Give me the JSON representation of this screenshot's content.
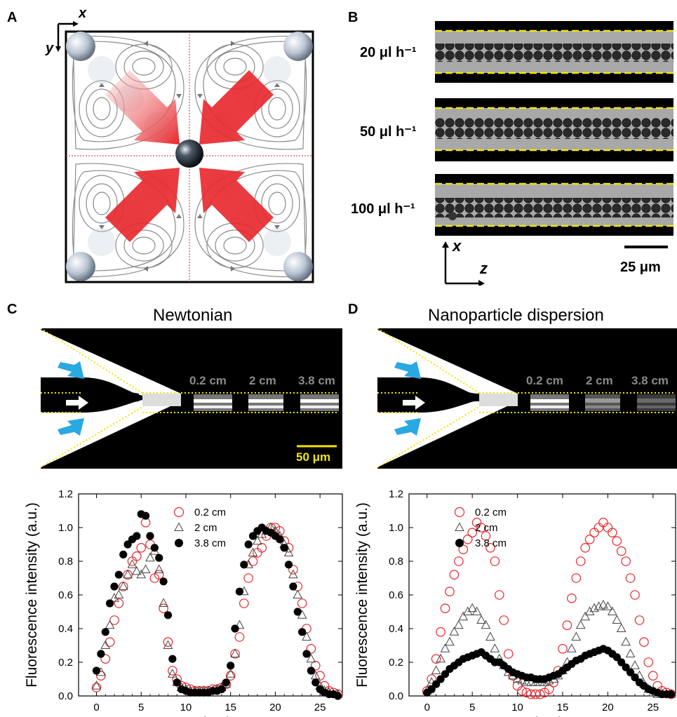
{
  "panels": {
    "a": {
      "letter": "A",
      "axis_x": "x",
      "axis_y": "y"
    },
    "b": {
      "letter": "B",
      "flow_rates": [
        "20 μl h⁻¹",
        "50 μl h⁻¹",
        "100 μl h⁻¹"
      ],
      "axis_x": "x",
      "axis_z": "z",
      "scale_label": "25 μm"
    },
    "c": {
      "letter": "C",
      "title": "Newtonian",
      "distances": [
        "0.2 cm",
        "2 cm",
        "3.8 cm"
      ],
      "scale_label": "50 μm"
    },
    "d": {
      "letter": "D",
      "title": "Nanoparticle dispersion",
      "distances": [
        "0.2 cm",
        "2 cm",
        "3.8 cm"
      ]
    }
  },
  "colors": {
    "accent_red": "#e8262b",
    "scale_yellow": "#f2e600",
    "arrow_cyan": "#29a9e1",
    "series_red": "#e8262b",
    "series_gray": "#444444",
    "series_black": "#000000"
  },
  "chart_data": [
    {
      "type": "scatter",
      "panel": "C",
      "xlabel": "x (μm)",
      "ylabel": "Fluorescence intensity (a.u.)",
      "xlim": [
        -2,
        27.5
      ],
      "ylim": [
        0,
        1.2
      ],
      "xticks": [
        0,
        5,
        10,
        15,
        20,
        25
      ],
      "yticks": [
        0.0,
        0.2,
        0.4,
        0.6,
        0.8,
        1.0,
        1.2
      ],
      "legend_position": "top-right",
      "series": [
        {
          "name": "0.2 cm",
          "marker": "open-circle",
          "color": "#e8262b",
          "x": [
            0,
            0.5,
            1,
            1.5,
            2,
            2.5,
            3,
            3.5,
            4,
            4.5,
            5,
            5.5,
            6,
            6.5,
            7,
            7.5,
            8,
            8.5,
            9,
            9.5,
            10,
            10.5,
            11,
            11.5,
            12,
            12.5,
            13,
            13.5,
            14,
            14.5,
            15,
            15.5,
            16,
            16.5,
            17,
            17.5,
            18,
            18.5,
            19,
            19.5,
            20,
            20.5,
            21,
            21.5,
            22,
            22.5,
            23,
            23.5,
            24,
            24.5,
            25,
            25.5,
            26,
            26.5,
            27
          ],
          "y": [
            0.05,
            0.12,
            0.22,
            0.32,
            0.45,
            0.55,
            0.65,
            0.72,
            0.8,
            0.83,
            0.88,
            1.03,
            0.9,
            0.7,
            0.72,
            0.52,
            0.32,
            0.15,
            0.1,
            0.06,
            0.05,
            0.04,
            0.03,
            0.03,
            0.03,
            0.03,
            0.04,
            0.04,
            0.05,
            0.07,
            0.12,
            0.25,
            0.35,
            0.55,
            0.7,
            0.8,
            0.85,
            0.88,
            0.95,
            1.0,
            1.0,
            0.98,
            0.92,
            0.88,
            0.75,
            0.65,
            0.55,
            0.4,
            0.28,
            0.18,
            0.12,
            0.06,
            0.03,
            0.02,
            0.01
          ]
        },
        {
          "name": "2 cm",
          "marker": "open-triangle",
          "color": "#444444",
          "x": [
            0,
            0.5,
            1,
            1.5,
            2,
            2.5,
            3,
            3.5,
            4,
            4.5,
            5,
            5.5,
            6,
            6.5,
            7,
            7.5,
            8,
            8.5,
            9,
            9.5,
            10,
            10.5,
            11,
            11.5,
            12,
            12.5,
            13,
            13.5,
            14,
            14.5,
            15,
            15.5,
            16,
            16.5,
            17,
            17.5,
            18,
            18.5,
            19,
            19.5,
            20,
            20.5,
            21,
            21.5,
            22,
            22.5,
            23,
            23.5,
            24,
            24.5,
            25,
            25.5,
            26,
            26.5,
            27
          ],
          "y": [
            0.06,
            0.14,
            0.3,
            0.42,
            0.58,
            0.6,
            0.65,
            0.72,
            0.78,
            0.74,
            0.72,
            0.75,
            0.82,
            0.86,
            0.75,
            0.55,
            0.3,
            0.13,
            0.08,
            0.05,
            0.04,
            0.03,
            0.03,
            0.03,
            0.03,
            0.03,
            0.03,
            0.04,
            0.05,
            0.07,
            0.13,
            0.25,
            0.42,
            0.62,
            0.78,
            0.85,
            0.92,
            0.96,
            0.98,
            1.0,
            0.98,
            0.95,
            0.9,
            0.85,
            0.72,
            0.6,
            0.48,
            0.35,
            0.22,
            0.12,
            0.06,
            0.03,
            0.02,
            0.01,
            0.01
          ]
        },
        {
          "name": "3.8 cm",
          "marker": "filled-circle",
          "color": "#000000",
          "x": [
            0,
            0.5,
            1,
            1.5,
            2,
            2.5,
            3,
            3.5,
            4,
            4.5,
            5,
            5.5,
            6,
            6.5,
            7,
            7.5,
            8,
            8.5,
            9,
            9.5,
            10,
            10.5,
            11,
            11.5,
            12,
            12.5,
            13,
            13.5,
            14,
            14.5,
            15,
            15.5,
            16,
            16.5,
            17,
            17.5,
            18,
            18.5,
            19,
            19.5,
            20,
            20.5,
            21,
            21.5,
            22,
            22.5,
            23,
            23.5,
            24,
            24.5,
            25,
            25.5,
            26,
            26.5,
            27
          ],
          "y": [
            0.15,
            0.25,
            0.38,
            0.55,
            0.65,
            0.72,
            0.84,
            0.9,
            0.93,
            0.95,
            1.08,
            1.07,
            0.95,
            0.88,
            0.82,
            0.68,
            0.48,
            0.22,
            0.08,
            0.04,
            0.03,
            0.02,
            0.02,
            0.02,
            0.02,
            0.02,
            0.03,
            0.03,
            0.04,
            0.08,
            0.18,
            0.4,
            0.62,
            0.78,
            0.9,
            0.95,
            0.98,
            1.0,
            0.98,
            0.97,
            0.95,
            0.93,
            0.88,
            0.78,
            0.65,
            0.5,
            0.38,
            0.25,
            0.15,
            0.08,
            0.04,
            0.02,
            0.01,
            0.01,
            0.0
          ]
        }
      ]
    },
    {
      "type": "scatter",
      "panel": "D",
      "xlabel": "x (μm)",
      "ylabel": "Fluorescence intensity (a.u.)",
      "xlim": [
        -2,
        27.5
      ],
      "ylim": [
        0,
        1.2
      ],
      "xticks": [
        0,
        5,
        10,
        15,
        20,
        25
      ],
      "yticks": [
        0.0,
        0.2,
        0.4,
        0.6,
        0.8,
        1.0,
        1.2
      ],
      "legend_position": "top-center",
      "series": [
        {
          "name": "0.2 cm",
          "marker": "open-circle",
          "color": "#e8262b",
          "x": [
            0,
            0.5,
            1,
            1.5,
            2,
            2.5,
            3,
            3.5,
            4,
            4.5,
            5,
            5.5,
            6,
            6.5,
            7,
            7.5,
            8,
            8.5,
            9,
            9.5,
            10,
            10.5,
            11,
            11.5,
            12,
            12.5,
            13,
            13.5,
            14,
            14.5,
            15,
            15.5,
            16,
            16.5,
            17,
            17.5,
            18,
            18.5,
            19,
            19.5,
            20,
            20.5,
            21,
            21.5,
            22,
            22.5,
            23,
            23.5,
            24,
            24.5,
            25,
            25.5,
            26,
            26.5,
            27
          ],
          "y": [
            0.03,
            0.1,
            0.22,
            0.38,
            0.52,
            0.62,
            0.72,
            0.8,
            0.87,
            0.93,
            0.97,
            1.03,
            1.0,
            0.95,
            0.88,
            0.8,
            0.6,
            0.45,
            0.25,
            0.12,
            0.06,
            0.03,
            0.02,
            0.01,
            0.01,
            0.01,
            0.02,
            0.04,
            0.08,
            0.15,
            0.28,
            0.42,
            0.58,
            0.7,
            0.8,
            0.88,
            0.93,
            0.97,
            1.0,
            1.03,
            1.0,
            0.97,
            0.92,
            0.86,
            0.8,
            0.7,
            0.6,
            0.45,
            0.32,
            0.2,
            0.12,
            0.06,
            0.03,
            0.02,
            0.01
          ]
        },
        {
          "name": "2 cm",
          "marker": "open-triangle",
          "color": "#444444",
          "x": [
            0,
            0.5,
            1,
            1.5,
            2,
            2.5,
            3,
            3.5,
            4,
            4.5,
            5,
            5.5,
            6,
            6.5,
            7,
            7.5,
            8,
            8.5,
            9,
            9.5,
            10,
            10.5,
            11,
            11.5,
            12,
            12.5,
            13,
            13.5,
            14,
            14.5,
            15,
            15.5,
            16,
            16.5,
            17,
            17.5,
            18,
            18.5,
            19,
            19.5,
            20,
            20.5,
            21,
            21.5,
            22,
            22.5,
            23,
            23.5,
            24,
            24.5,
            25,
            25.5,
            26,
            26.5,
            27
          ],
          "y": [
            0.03,
            0.08,
            0.15,
            0.22,
            0.28,
            0.32,
            0.38,
            0.42,
            0.47,
            0.5,
            0.52,
            0.5,
            0.45,
            0.42,
            0.35,
            0.28,
            0.22,
            0.18,
            0.14,
            0.12,
            0.1,
            0.09,
            0.08,
            0.08,
            0.08,
            0.08,
            0.08,
            0.09,
            0.1,
            0.12,
            0.15,
            0.2,
            0.28,
            0.35,
            0.42,
            0.47,
            0.5,
            0.52,
            0.53,
            0.54,
            0.53,
            0.5,
            0.45,
            0.4,
            0.32,
            0.25,
            0.18,
            0.12,
            0.07,
            0.04,
            0.02,
            0.01,
            0.01,
            0.01,
            0.01
          ]
        },
        {
          "name": "3.8 cm",
          "marker": "filled-circle",
          "color": "#000000",
          "x": [
            0,
            0.5,
            1,
            1.5,
            2,
            2.5,
            3,
            3.5,
            4,
            4.5,
            5,
            5.5,
            6,
            6.5,
            7,
            7.5,
            8,
            8.5,
            9,
            9.5,
            10,
            10.5,
            11,
            11.5,
            12,
            12.5,
            13,
            13.5,
            14,
            14.5,
            15,
            15.5,
            16,
            16.5,
            17,
            17.5,
            18,
            18.5,
            19,
            19.5,
            20,
            20.5,
            21,
            21.5,
            22,
            22.5,
            23,
            23.5,
            24,
            24.5,
            25,
            25.5,
            26,
            26.5,
            27
          ],
          "y": [
            0.02,
            0.04,
            0.07,
            0.1,
            0.13,
            0.16,
            0.18,
            0.2,
            0.22,
            0.23,
            0.24,
            0.25,
            0.26,
            0.24,
            0.22,
            0.2,
            0.2,
            0.18,
            0.16,
            0.14,
            0.13,
            0.12,
            0.11,
            0.11,
            0.1,
            0.1,
            0.1,
            0.11,
            0.12,
            0.13,
            0.15,
            0.17,
            0.19,
            0.21,
            0.22,
            0.24,
            0.25,
            0.26,
            0.27,
            0.28,
            0.27,
            0.25,
            0.23,
            0.2,
            0.17,
            0.14,
            0.11,
            0.08,
            0.06,
            0.04,
            0.03,
            0.02,
            0.01,
            0.01,
            0.01
          ]
        }
      ]
    }
  ]
}
